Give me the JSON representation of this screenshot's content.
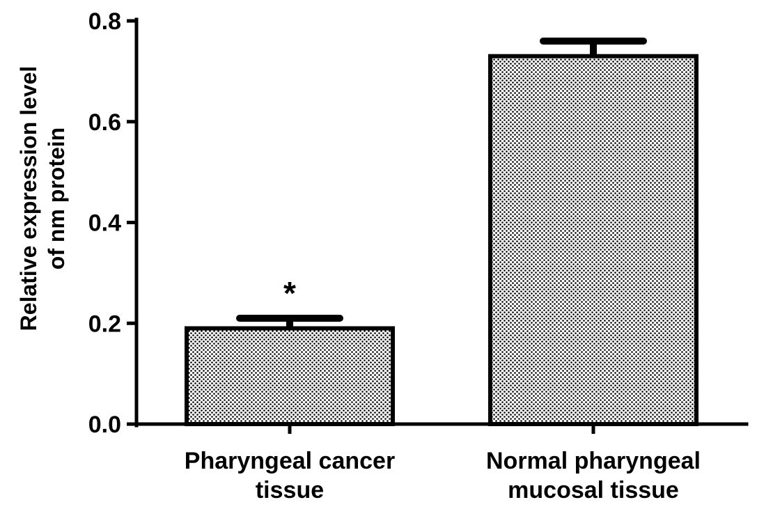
{
  "chart_data": {
    "type": "bar",
    "categories": [
      [
        "Pharyngeal cancer",
        "tissue"
      ],
      [
        "Normal pharyngeal",
        "mucosal tissue"
      ]
    ],
    "values": [
      0.19,
      0.73
    ],
    "error_upper": [
      0.21,
      0.76
    ],
    "annotations": [
      "*",
      ""
    ],
    "title": "",
    "xlabel": "",
    "ylabel": [
      "Relative expression level",
      "of nm protein"
    ],
    "ylim": [
      0,
      0.8
    ],
    "yticks": [
      "0.0",
      "0.2",
      "0.4",
      "0.6",
      "0.8"
    ],
    "grid": false,
    "legend": "none",
    "bar_fill": "dotted-pattern",
    "colors": {
      "bar_dots": "#000000",
      "bar_background": "#ffffff",
      "axis": "#000000"
    }
  }
}
